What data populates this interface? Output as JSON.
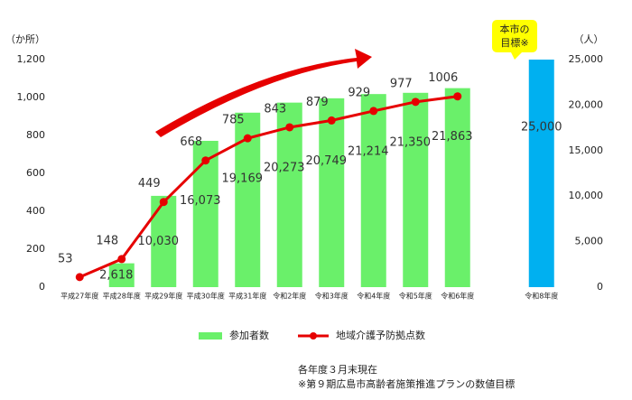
{
  "chart_data": {
    "type": "bar-line",
    "y_axis_title": "（か所）",
    "y2_axis_title": "（人）",
    "categories": [
      "平成27年度",
      "平成28年度",
      "平成29年度",
      "平成30年度",
      "平成31年度",
      "令和2年度",
      "令和3年度",
      "令和4年度",
      "令和5年度",
      "令和6年度",
      null,
      "令和8年度"
    ],
    "series": [
      {
        "name": "参加者数",
        "kind": "bar",
        "axis": "y2",
        "color": "#6af06a",
        "point_colors": [
          null,
          "#6af06a",
          "#6af06a",
          "#6af06a",
          "#6af06a",
          "#6af06a",
          "#6af06a",
          "#6af06a",
          "#6af06a",
          "#6af06a",
          null,
          "#00b0f0"
        ],
        "values": [
          null,
          2618,
          10030,
          16073,
          19169,
          20273,
          20749,
          21214,
          21350,
          21863,
          null,
          25000
        ],
        "value_labels": [
          null,
          "2,618",
          "10,030",
          "16,073",
          "19,169",
          "20,273",
          "20,749",
          "21,214",
          "21,350",
          "21,863",
          null,
          "25,000"
        ]
      },
      {
        "name": "地域介護予防拠点数",
        "kind": "line",
        "color": "#e60000",
        "values": [
          53,
          148,
          449,
          668,
          785,
          843,
          879,
          929,
          977,
          1006,
          null,
          null
        ]
      }
    ],
    "ylim": [
      0,
      1200
    ],
    "yticks": [
      0,
      200,
      400,
      600,
      800,
      {
        "value": 1000,
        "label": "1,000"
      },
      {
        "value": 1200,
        "label": "1,200"
      }
    ],
    "y2lim": [
      0,
      25000
    ],
    "y2ticks": [
      0,
      {
        "value": 5000,
        "label": "5,000"
      },
      {
        "value": 10000,
        "label": "10,000"
      },
      {
        "value": 15000,
        "label": "15,000"
      },
      {
        "value": 20000,
        "label": "20,000"
      },
      {
        "value": 25000,
        "label": "25,000"
      }
    ],
    "annotation": [
      "本市の",
      "目標※"
    ],
    "notes": [
      "各年度３月末現在",
      "※第９期広島市高齢者施策推進プランの数値目標"
    ]
  }
}
